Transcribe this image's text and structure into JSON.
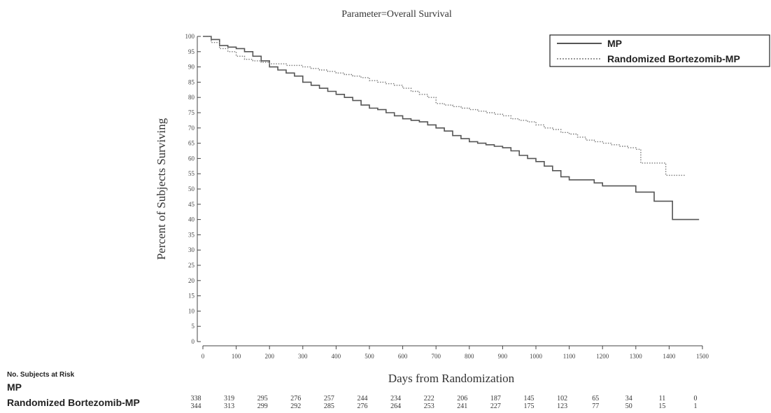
{
  "chart_data": {
    "type": "line",
    "title": "Parameter=Overall Survival",
    "xlabel": "Days from Randomization",
    "ylabel": "Percent of Subjects Surviving",
    "xlim": [
      0,
      1500
    ],
    "ylim": [
      0,
      100
    ],
    "x_ticks": [
      "0",
      "100",
      "200",
      "300",
      "400",
      "500",
      "600",
      "700",
      "800",
      "900",
      "1000",
      "1100",
      "1200",
      "1300",
      "1400",
      "1500"
    ],
    "y_ticks": [
      "0",
      "5",
      "10",
      "15",
      "20",
      "25",
      "30",
      "35",
      "40",
      "45",
      "50",
      "55",
      "60",
      "65",
      "70",
      "75",
      "80",
      "85",
      "90",
      "95",
      "100"
    ],
    "grid": false,
    "legend_position": "top-right",
    "series": [
      {
        "name": "MP",
        "style": "solid",
        "color": "#555555",
        "points": [
          [
            0,
            100
          ],
          [
            25,
            99
          ],
          [
            50,
            97
          ],
          [
            75,
            96.5
          ],
          [
            100,
            96
          ],
          [
            125,
            95
          ],
          [
            150,
            93.5
          ],
          [
            175,
            92
          ],
          [
            200,
            90
          ],
          [
            225,
            89
          ],
          [
            250,
            88
          ],
          [
            275,
            87
          ],
          [
            300,
            85
          ],
          [
            325,
            84
          ],
          [
            350,
            83
          ],
          [
            375,
            82
          ],
          [
            400,
            81
          ],
          [
            425,
            80
          ],
          [
            450,
            79
          ],
          [
            475,
            77.5
          ],
          [
            500,
            76.5
          ],
          [
            525,
            76
          ],
          [
            550,
            75
          ],
          [
            575,
            74
          ],
          [
            600,
            73
          ],
          [
            625,
            72.5
          ],
          [
            650,
            72
          ],
          [
            675,
            71
          ],
          [
            700,
            70
          ],
          [
            725,
            69
          ],
          [
            750,
            67.5
          ],
          [
            775,
            66.5
          ],
          [
            800,
            65.5
          ],
          [
            825,
            65
          ],
          [
            850,
            64.5
          ],
          [
            875,
            64
          ],
          [
            900,
            63.5
          ],
          [
            925,
            62.5
          ],
          [
            950,
            61
          ],
          [
            975,
            60
          ],
          [
            1000,
            59
          ],
          [
            1025,
            57.5
          ],
          [
            1050,
            56
          ],
          [
            1075,
            54
          ],
          [
            1100,
            53
          ],
          [
            1125,
            53
          ],
          [
            1150,
            53
          ],
          [
            1175,
            52
          ],
          [
            1200,
            51
          ],
          [
            1225,
            51
          ],
          [
            1250,
            51
          ],
          [
            1275,
            51
          ],
          [
            1300,
            49
          ],
          [
            1350,
            49
          ],
          [
            1355,
            46
          ],
          [
            1400,
            46
          ],
          [
            1410,
            40
          ],
          [
            1490,
            40
          ]
        ]
      },
      {
        "name": "Randomized Bortezomib-MP",
        "style": "dotted",
        "color": "#777777",
        "points": [
          [
            0,
            100
          ],
          [
            25,
            98
          ],
          [
            50,
            96
          ],
          [
            75,
            95
          ],
          [
            100,
            93.5
          ],
          [
            125,
            92.5
          ],
          [
            150,
            92
          ],
          [
            175,
            91.5
          ],
          [
            200,
            91
          ],
          [
            225,
            91
          ],
          [
            250,
            90.5
          ],
          [
            275,
            90.5
          ],
          [
            300,
            90
          ],
          [
            325,
            89.5
          ],
          [
            350,
            89
          ],
          [
            375,
            88.5
          ],
          [
            400,
            88
          ],
          [
            425,
            87.5
          ],
          [
            450,
            87
          ],
          [
            475,
            86.5
          ],
          [
            500,
            85.5
          ],
          [
            525,
            85
          ],
          [
            550,
            84.5
          ],
          [
            575,
            84
          ],
          [
            600,
            83
          ],
          [
            625,
            82
          ],
          [
            650,
            81
          ],
          [
            675,
            80
          ],
          [
            700,
            78
          ],
          [
            725,
            77.5
          ],
          [
            750,
            77
          ],
          [
            775,
            76.5
          ],
          [
            800,
            76
          ],
          [
            825,
            75.5
          ],
          [
            850,
            75
          ],
          [
            875,
            74.5
          ],
          [
            900,
            74
          ],
          [
            925,
            73
          ],
          [
            950,
            72.5
          ],
          [
            975,
            72
          ],
          [
            1000,
            71
          ],
          [
            1025,
            70
          ],
          [
            1050,
            69.5
          ],
          [
            1075,
            68.5
          ],
          [
            1100,
            68
          ],
          [
            1125,
            67
          ],
          [
            1150,
            66
          ],
          [
            1175,
            65.5
          ],
          [
            1200,
            65
          ],
          [
            1225,
            64.5
          ],
          [
            1250,
            64
          ],
          [
            1275,
            63.5
          ],
          [
            1300,
            63
          ],
          [
            1315,
            58.5
          ],
          [
            1350,
            58.5
          ],
          [
            1375,
            58.5
          ],
          [
            1390,
            54.5
          ],
          [
            1450,
            54.5
          ]
        ]
      }
    ]
  },
  "risk_table": {
    "heading": "No. Subjects at Risk",
    "rows": [
      {
        "label": "MP",
        "values": [
          "338",
          "319",
          "295",
          "276",
          "257",
          "244",
          "234",
          "222",
          "206",
          "187",
          "145",
          "102",
          "65",
          "34",
          "11",
          "0"
        ]
      },
      {
        "label": "Randomized Bortezomib-MP",
        "values": [
          "344",
          "313",
          "299",
          "292",
          "285",
          "276",
          "264",
          "253",
          "241",
          "227",
          "175",
          "123",
          "77",
          "50",
          "15",
          "1"
        ]
      }
    ]
  }
}
